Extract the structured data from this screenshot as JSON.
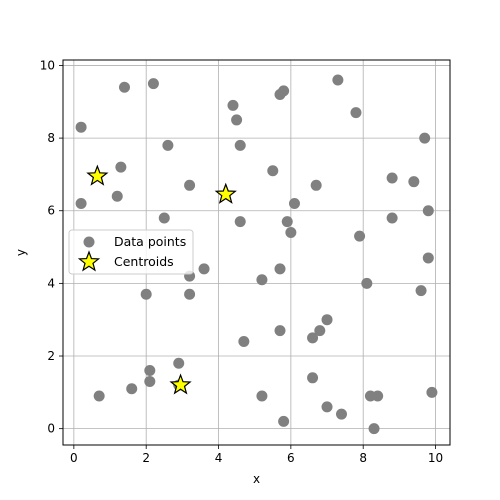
{
  "chart_data": {
    "type": "scatter",
    "xlabel": "x",
    "ylabel": "y",
    "xlim": [
      -0.3,
      10.4
    ],
    "ylim": [
      -0.45,
      10.15
    ],
    "xticks": [
      0,
      2,
      4,
      6,
      8,
      10
    ],
    "yticks": [
      0,
      2,
      4,
      6,
      8,
      10
    ],
    "grid": true,
    "legend_position": "center-left",
    "series": [
      {
        "name": "Data points",
        "marker": "circle",
        "color": "#808080",
        "points": [
          [
            0.2,
            8.3
          ],
          [
            0.2,
            6.2
          ],
          [
            0.7,
            0.9
          ],
          [
            1.2,
            6.4
          ],
          [
            1.3,
            7.2
          ],
          [
            1.4,
            9.4
          ],
          [
            1.6,
            1.1
          ],
          [
            2.0,
            3.7
          ],
          [
            2.1,
            1.6
          ],
          [
            2.1,
            1.3
          ],
          [
            2.2,
            9.5
          ],
          [
            2.5,
            5.8
          ],
          [
            2.6,
            7.8
          ],
          [
            2.9,
            1.8
          ],
          [
            2.9,
            1.2
          ],
          [
            3.2,
            6.7
          ],
          [
            3.2,
            4.2
          ],
          [
            3.2,
            3.7
          ],
          [
            3.6,
            4.4
          ],
          [
            4.4,
            8.9
          ],
          [
            4.5,
            8.5
          ],
          [
            4.6,
            7.8
          ],
          [
            4.6,
            5.7
          ],
          [
            4.7,
            2.4
          ],
          [
            5.2,
            4.1
          ],
          [
            5.2,
            0.9
          ],
          [
            5.5,
            7.1
          ],
          [
            5.7,
            9.2
          ],
          [
            5.7,
            4.4
          ],
          [
            5.7,
            2.7
          ],
          [
            5.8,
            9.3
          ],
          [
            5.8,
            0.2
          ],
          [
            5.9,
            5.7
          ],
          [
            6.0,
            5.4
          ],
          [
            6.1,
            6.2
          ],
          [
            6.6,
            2.5
          ],
          [
            6.6,
            1.4
          ],
          [
            6.7,
            6.7
          ],
          [
            6.8,
            2.7
          ],
          [
            7.0,
            3.0
          ],
          [
            7.0,
            0.6
          ],
          [
            7.3,
            9.6
          ],
          [
            7.4,
            0.4
          ],
          [
            7.8,
            8.7
          ],
          [
            7.9,
            5.3
          ],
          [
            8.1,
            4.0
          ],
          [
            8.2,
            0.9
          ],
          [
            8.3,
            0.0
          ],
          [
            8.4,
            0.9
          ],
          [
            8.8,
            6.9
          ],
          [
            8.8,
            5.8
          ],
          [
            9.4,
            6.8
          ],
          [
            9.6,
            3.8
          ],
          [
            9.7,
            8.0
          ],
          [
            9.8,
            6.0
          ],
          [
            9.8,
            4.7
          ],
          [
            9.9,
            1.0
          ]
        ]
      },
      {
        "name": "Centroids",
        "marker": "star",
        "color": "#ffff00",
        "edgecolor": "#000000",
        "points": [
          [
            0.65,
            6.95
          ],
          [
            4.2,
            6.45
          ],
          [
            2.95,
            1.2
          ]
        ]
      }
    ]
  }
}
